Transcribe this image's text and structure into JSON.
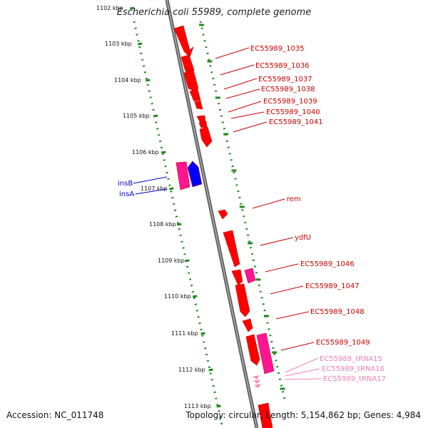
{
  "title": "Escherichia coli 55989, complete genome",
  "footer": {
    "accession": "Accession: NC_011748",
    "summary": "Topology: circular; Length: 5,154,862 bp; Genes: 4,984"
  },
  "ticks": [
    "1102 kbp",
    "1103 kbp",
    "1104 kbp",
    "1105 kbp",
    "1106 kbp",
    "1107 kbp",
    "1108 kbp",
    "1109 kbp",
    "1110 kbp",
    "1111 kbp",
    "1112 kbp",
    "1113 kbp"
  ],
  "colors": {
    "cds": "#ff0000",
    "cds_dark": "#c40000",
    "mobile": "#ff1493",
    "mobile_blue": "#0000ff",
    "trna": "#f48fb1",
    "label_red": "#cc0000",
    "label_blue": "#0000cc",
    "label_pink": "#f080b0",
    "dotted": "#228b22",
    "backbone": "#808080"
  },
  "labels": [
    {
      "text": "EC55989_1035",
      "kind": "cds"
    },
    {
      "text": "EC55989_1036",
      "kind": "cds"
    },
    {
      "text": "EC55989_1037",
      "kind": "cds"
    },
    {
      "text": "EC55989_1038",
      "kind": "cds"
    },
    {
      "text": "EC55989_1039",
      "kind": "cds"
    },
    {
      "text": "EC55989_1040",
      "kind": "cds"
    },
    {
      "text": "EC55989_1041",
      "kind": "cds"
    },
    {
      "text": "insB",
      "kind": "mobile"
    },
    {
      "text": "insA",
      "kind": "mobile"
    },
    {
      "text": "rem",
      "kind": "cds"
    },
    {
      "text": "ydfU",
      "kind": "cds"
    },
    {
      "text": "EC55989_1046",
      "kind": "cds"
    },
    {
      "text": "EC55989_1047",
      "kind": "cds"
    },
    {
      "text": "EC55989_1048",
      "kind": "cds"
    },
    {
      "text": "EC55989_1049",
      "kind": "cds"
    },
    {
      "text": "EC55989_tRNA15",
      "kind": "trna"
    },
    {
      "text": "EC55989_tRNA16",
      "kind": "trna"
    },
    {
      "text": "EC55989_tRNA17",
      "kind": "trna"
    }
  ]
}
